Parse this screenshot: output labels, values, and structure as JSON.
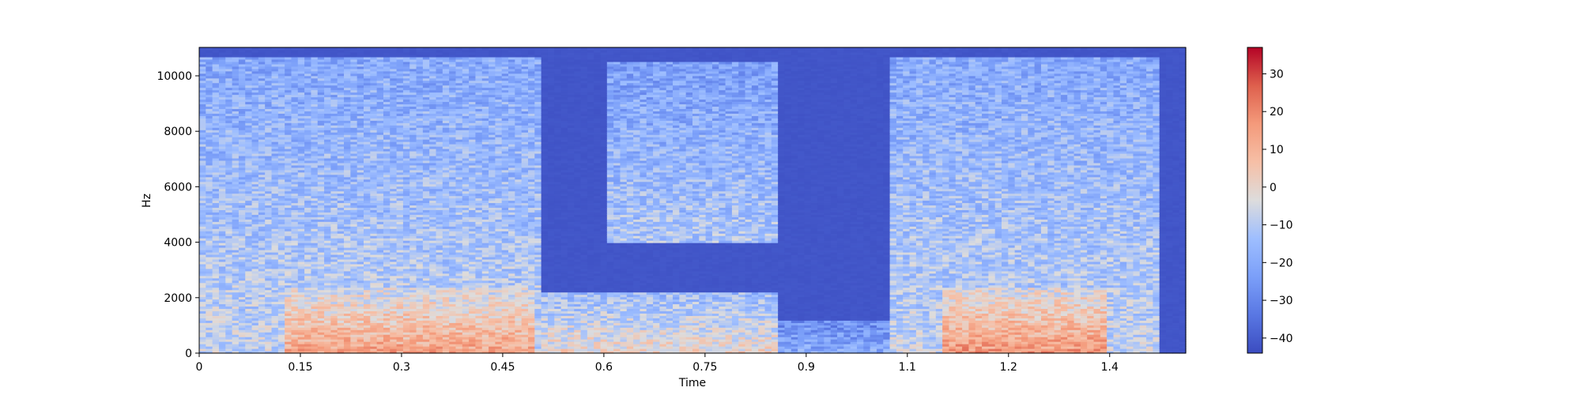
{
  "chart_data": {
    "type": "heatmap",
    "title": "",
    "xlabel": "Time",
    "ylabel": "Hz",
    "xlim": [
      0,
      1.4628
    ],
    "ylim": [
      0,
      11025
    ],
    "x_ticks": [
      0,
      0.15,
      0.3,
      0.45,
      0.6,
      0.75,
      0.9,
      1.05,
      1.2,
      1.35
    ],
    "x_tick_labels": [
      "0",
      "0.15",
      "0.3",
      "0.45",
      "0.6",
      "0.75",
      "0.9",
      "1.1",
      "1.2",
      "1.4"
    ],
    "y_ticks": [
      0,
      2000,
      4000,
      6000,
      8000,
      10000
    ],
    "y_tick_labels": [
      "0",
      "2000",
      "4000",
      "6000",
      "8000",
      "10000"
    ],
    "colorbar": {
      "colormap": "coolwarm",
      "range": [
        -44,
        37
      ],
      "ticks": [
        -40,
        -30,
        -20,
        -10,
        0,
        10,
        20,
        30
      ],
      "tick_labels": [
        "−40",
        "−30",
        "−20",
        "−10",
        "0",
        "10",
        "20",
        "30"
      ]
    },
    "energy_regions": [
      {
        "t_start": 0.0,
        "t_end": 0.51,
        "f_low": 0,
        "f_high": 10700,
        "level": 0.45
      },
      {
        "t_start": 0.13,
        "t_end": 0.5,
        "f_low": 0,
        "f_high": 2400,
        "level": 0.72
      },
      {
        "t_start": 0.51,
        "t_end": 0.86,
        "f_low": 0,
        "f_high": 2200,
        "level": 0.55
      },
      {
        "t_start": 0.6,
        "t_end": 0.86,
        "f_low": 4000,
        "f_high": 10500,
        "level": 0.4
      },
      {
        "t_start": 0.86,
        "t_end": 1.02,
        "f_low": 0,
        "f_high": 1200,
        "level": 0.3
      },
      {
        "t_start": 1.02,
        "t_end": 1.42,
        "f_low": 0,
        "f_high": 10700,
        "level": 0.45
      },
      {
        "t_start": 1.1,
        "t_end": 1.35,
        "f_low": 0,
        "f_high": 2400,
        "level": 0.75
      }
    ]
  }
}
